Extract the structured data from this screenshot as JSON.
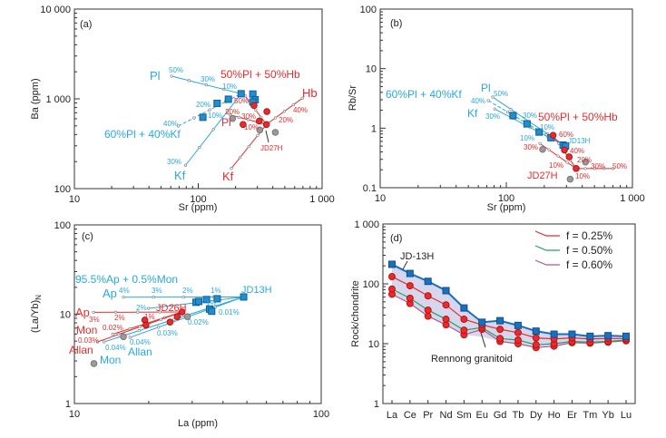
{
  "colors": {
    "blue": "#2aa7df",
    "red": "#e52d2f",
    "gray": "#9a9a9a",
    "square_fill": "#1f8ed3",
    "d_blue": "#1a6fbf",
    "band": "#cfd0ea",
    "green": "#22a45a",
    "purple": "#b0559a"
  },
  "chart_data": [
    {
      "panel": "a",
      "type": "scatter",
      "xscale": "log",
      "yscale": "log",
      "xlabel": "Sr (ppm)",
      "ylabel": "Ba (ppm)",
      "xlim": [
        10,
        1000
      ],
      "ylim": [
        100,
        10000
      ],
      "xticks": [
        {
          "v": 10,
          "label": "10"
        },
        {
          "v": 100,
          "label": "100"
        },
        {
          "v": 1000,
          "label": "1 000"
        }
      ],
      "yticks": [
        {
          "v": 100,
          "label": "100"
        },
        {
          "v": 1000,
          "label": "1 000"
        },
        {
          "v": 10000,
          "label": "10 000"
        }
      ],
      "series": [
        {
          "kind": "line",
          "color": "blue",
          "points": [
            [
              61,
              1790
            ],
            [
              222,
              1140
            ]
          ]
        },
        {
          "kind": "line",
          "color": "blue",
          "points": [
            [
              79,
              182
            ],
            [
              222,
              1140
            ]
          ]
        },
        {
          "kind": "line",
          "color": "blue",
          "dashed": true,
          "points": [
            [
              69,
              498
            ],
            [
              222,
              1140
            ]
          ]
        },
        {
          "kind": "line",
          "color": "red",
          "points": [
            [
              693,
              1016
            ],
            [
              355,
              518
            ]
          ]
        },
        {
          "kind": "line",
          "color": "red",
          "points": [
            [
              185,
              168
            ],
            [
              355,
              518
            ]
          ]
        },
        {
          "kind": "line",
          "color": "red",
          "points": [
            [
              180,
              663
            ],
            [
              355,
              518
            ]
          ]
        },
        {
          "kind": "line",
          "color": "red",
          "points": [
            [
              239,
              1080
            ],
            [
              355,
              518
            ]
          ]
        },
        {
          "kind": "points",
          "marker": "circle",
          "color": "gray",
          "points": [
            [
              189,
              604
            ],
            [
              314,
              450
            ],
            [
              419,
              423
            ]
          ]
        },
        {
          "kind": "points",
          "marker": "square",
          "color": "square_fill",
          "points": [
            [
              222,
              1140
            ],
            [
              276,
              1130
            ],
            [
              288,
              977
            ],
            [
              276,
              923
            ],
            [
              175,
              990
            ],
            [
              142,
              891
            ],
            [
              109,
              623
            ]
          ]
        },
        {
          "kind": "points",
          "marker": "circle",
          "color": "red",
          "points": [
            [
              282,
              843
            ],
            [
              358,
              722
            ],
            [
              311,
              567
            ],
            [
              355,
              518
            ],
            [
              230,
              518
            ]
          ]
        }
      ],
      "annotations": [
        {
          "text": "(a)",
          "color": "#222"
        },
        {
          "text": "Pl",
          "color": "blue"
        },
        {
          "text": "50%",
          "color": "blue"
        },
        {
          "text": "30%",
          "color": "blue"
        },
        {
          "text": "10%",
          "color": "blue"
        },
        {
          "text": "50%Pl + 50%Hb",
          "color": "red"
        },
        {
          "text": "Hb",
          "color": "red"
        },
        {
          "text": "40%",
          "color": "red"
        },
        {
          "text": "20%",
          "color": "red"
        },
        {
          "text": "50%",
          "color": "red"
        },
        {
          "text": "20%",
          "color": "red"
        },
        {
          "text": "30%",
          "color": "red"
        },
        {
          "text": "10%",
          "color": "red"
        },
        {
          "text": "Pl",
          "color": "red"
        },
        {
          "text": "20%",
          "color": "blue"
        },
        {
          "text": "10%",
          "color": "blue"
        },
        {
          "text": "40%",
          "color": "blue"
        },
        {
          "text": "60%Pl + 40%Kf",
          "color": "blue"
        },
        {
          "text": "JD27H",
          "color": "red"
        },
        {
          "text": "30%",
          "color": "blue"
        },
        {
          "text": "Kf",
          "color": "blue"
        },
        {
          "text": "Kf",
          "color": "red"
        }
      ]
    },
    {
      "panel": "b",
      "type": "scatter",
      "xscale": "log",
      "yscale": "log",
      "xlabel": "Sr (ppm)",
      "ylabel": "Rb/Sr",
      "xlim": [
        10,
        1000
      ],
      "ylim": [
        0.1,
        100
      ],
      "xticks": [
        {
          "v": 10,
          "label": "10"
        },
        {
          "v": 100,
          "label": "100"
        },
        {
          "v": 1000,
          "label": "1 000"
        }
      ],
      "yticks": [
        {
          "v": 0.1,
          "label": "0.1"
        },
        {
          "v": 1,
          "label": "1"
        },
        {
          "v": 10,
          "label": "10"
        },
        {
          "v": 100,
          "label": "100"
        }
      ],
      "series": [
        {
          "kind": "line",
          "color": "blue",
          "points": [
            [
              78,
              3.33
            ],
            [
              295,
              0.5
            ]
          ]
        },
        {
          "kind": "line",
          "color": "blue",
          "dashed": true,
          "points": [
            [
              72,
              2.9
            ],
            [
              295,
              0.5
            ]
          ]
        },
        {
          "kind": "line",
          "color": "blue",
          "points": [
            [
              81,
              2.1
            ],
            [
              295,
              0.5
            ]
          ]
        },
        {
          "kind": "line",
          "color": "red",
          "points": [
            [
              703,
              0.21
            ],
            [
              358,
              0.21
            ]
          ]
        },
        {
          "kind": "line",
          "color": "red",
          "points": [
            [
              185,
              0.55
            ],
            [
              358,
              0.21
            ]
          ]
        },
        {
          "kind": "line",
          "color": "red",
          "points": [
            [
              235,
              0.76
            ],
            [
              358,
              0.21
            ]
          ]
        },
        {
          "kind": "points",
          "marker": "circle",
          "color": "gray",
          "points": [
            [
              194,
              0.44
            ],
            [
              425,
              0.27
            ],
            [
              321,
              0.139
            ]
          ]
        },
        {
          "kind": "points",
          "marker": "square",
          "color": "square_fill",
          "points": [
            [
              113,
              1.63
            ],
            [
              146,
              1.18
            ],
            [
              182,
              0.86
            ],
            [
              226,
              0.69
            ],
            [
              282,
              0.52
            ],
            [
              295,
              0.5
            ]
          ]
        },
        {
          "kind": "points",
          "marker": "circle",
          "color": "red",
          "points": [
            [
              235,
              0.76
            ],
            [
              289,
              0.43
            ],
            [
              315,
              0.33
            ],
            [
              358,
              0.21
            ]
          ]
        }
      ],
      "annotations": [
        {
          "text": "(b)",
          "color": "#222"
        },
        {
          "text": "60%Pl + 40%Kf",
          "color": "blue"
        },
        {
          "text": "Pl",
          "color": "blue"
        },
        {
          "text": "50%",
          "color": "blue"
        },
        {
          "text": "40%",
          "color": "blue"
        },
        {
          "text": "Kf",
          "color": "blue"
        },
        {
          "text": "30%",
          "color": "blue"
        },
        {
          "text": "30%",
          "color": "blue"
        },
        {
          "text": "50%Pl + 50%Hb",
          "color": "red"
        },
        {
          "text": "10%",
          "color": "blue"
        },
        {
          "text": "10%",
          "color": "blue"
        },
        {
          "text": "60%",
          "color": "red"
        },
        {
          "text": "JD13H",
          "color": "blue"
        },
        {
          "text": "40%",
          "color": "red"
        },
        {
          "text": "30%",
          "color": "red"
        },
        {
          "text": "20%",
          "color": "red"
        },
        {
          "text": "10%",
          "color": "red"
        },
        {
          "text": "30%",
          "color": "red"
        },
        {
          "text": "50%",
          "color": "red"
        },
        {
          "text": "JD27H",
          "color": "red"
        },
        {
          "text": "10%",
          "color": "red"
        }
      ]
    },
    {
      "panel": "c",
      "type": "scatter",
      "xscale": "log",
      "yscale": "log",
      "xlabel": "La (ppm)",
      "ylabel": "(La/Yb)",
      "ylabel_sub": "N",
      "xlim": [
        10,
        100
      ],
      "ylim": [
        1,
        100
      ],
      "xticks": [
        {
          "v": 10,
          "label": "10"
        },
        {
          "v": 100,
          "label": "100"
        }
      ],
      "yticks": [
        {
          "v": 1,
          "label": "1"
        },
        {
          "v": 10,
          "label": "10"
        },
        {
          "v": 100,
          "label": "100"
        }
      ],
      "series": [
        {
          "kind": "line",
          "color": "blue",
          "points": [
            [
              15.8,
              15.5
            ],
            [
              48.5,
              15.6
            ]
          ]
        },
        {
          "kind": "line",
          "color": "blue",
          "points": [
            [
              19.95,
              11.6
            ],
            [
              48.5,
              15.6
            ]
          ]
        },
        {
          "kind": "line",
          "color": "blue",
          "points": [
            [
              13.2,
              4.9
            ],
            [
              48.5,
              15.6
            ]
          ]
        },
        {
          "kind": "line",
          "color": "blue",
          "points": [
            [
              16.8,
              5.5
            ],
            [
              48.5,
              15.6
            ]
          ]
        },
        {
          "kind": "line",
          "color": "red",
          "points": [
            [
              11.95,
              10.5
            ],
            [
              27.3,
              10.6
            ]
          ]
        },
        {
          "kind": "line",
          "color": "red",
          "points": [
            [
              14.3,
              5.97
            ],
            [
              27.3,
              10.6
            ]
          ]
        },
        {
          "kind": "line",
          "color": "red",
          "points": [
            [
              12.4,
              4.9
            ],
            [
              27.3,
              10.6
            ]
          ]
        },
        {
          "kind": "points",
          "marker": "circle",
          "color": "gray",
          "points": [
            [
              28.7,
              9.4
            ],
            [
              15.8,
              5.6
            ],
            [
              12.0,
              2.8
            ]
          ]
        },
        {
          "kind": "points",
          "marker": "square",
          "color": "square_fill",
          "points": [
            [
              48.5,
              15.6
            ],
            [
              31.1,
              13.6
            ],
            [
              31.9,
              13.9
            ],
            [
              34.3,
              14.6
            ],
            [
              37.9,
              14.9
            ],
            [
              35.3,
              11.4
            ],
            [
              36.0,
              10.8
            ]
          ]
        },
        {
          "kind": "points",
          "marker": "circle",
          "color": "red",
          "points": [
            [
              27.3,
              10.6
            ],
            [
              19.3,
              8.6
            ],
            [
              19.5,
              7.55
            ],
            [
              24.4,
              8.16
            ],
            [
              26.1,
              9.4
            ]
          ]
        }
      ],
      "annotations": [
        {
          "text": "(c)",
          "color": "#222"
        },
        {
          "text": "95.5%Ap + 0.5%Mon",
          "color": "blue"
        },
        {
          "text": "Ap",
          "color": "blue"
        },
        {
          "text": "4%",
          "color": "blue"
        },
        {
          "text": "3%",
          "color": "blue"
        },
        {
          "text": "2%",
          "color": "blue"
        },
        {
          "text": "1%",
          "color": "blue"
        },
        {
          "text": "JD13H",
          "color": "blue"
        },
        {
          "text": "Ap",
          "color": "red"
        },
        {
          "text": "2%",
          "color": "blue"
        },
        {
          "text": "JD26H",
          "color": "red"
        },
        {
          "text": "3%",
          "color": "red"
        },
        {
          "text": "2%",
          "color": "red"
        },
        {
          "text": "1%",
          "color": "red"
        },
        {
          "text": "1%",
          "color": "blue"
        },
        {
          "text": "0.01%",
          "color": "blue"
        },
        {
          "text": "0.02%",
          "color": "blue"
        },
        {
          "text": "0.03%",
          "color": "blue"
        },
        {
          "text": "0.02%",
          "color": "red"
        },
        {
          "text": "Mon",
          "color": "red"
        },
        {
          "text": "0.03%",
          "color": "red"
        },
        {
          "text": "Allan",
          "color": "red"
        },
        {
          "text": "0.04%",
          "color": "blue"
        },
        {
          "text": "0.04%",
          "color": "blue"
        },
        {
          "text": "Allan",
          "color": "blue"
        },
        {
          "text": "Mon",
          "color": "blue"
        }
      ]
    },
    {
      "panel": "d",
      "type": "line",
      "yscale": "log",
      "xlabel": "",
      "ylabel": "Rock/chondrite",
      "ylim": [
        1,
        1000
      ],
      "categories": [
        "La",
        "Ce",
        "Pr",
        "Nd",
        "Sm",
        "Eu",
        "Gd",
        "Tb",
        "Dy",
        "Ho",
        "Er",
        "Tm",
        "Yb",
        "Lu"
      ],
      "yticks": [
        {
          "v": 1,
          "label": "1"
        },
        {
          "v": 10,
          "label": "10"
        },
        {
          "v": 100,
          "label": "100"
        },
        {
          "v": 1000,
          "label": "1 000"
        }
      ],
      "band": {
        "upper": [
          212,
          149,
          110,
          77,
          39.5,
          22.8,
          24.2,
          20.2,
          16.2,
          14.4,
          14.4,
          13.3,
          13.6,
          13.3
        ],
        "lower": [
          67,
          47,
          28.8,
          20.7,
          14.1,
          13,
          10.9,
          10.0,
          8.6,
          9.1,
          10.4,
          10.2,
          10.6,
          11.2
        ]
      },
      "series": [
        {
          "color": "d_blue",
          "marker": "square",
          "values": [
            212,
            149,
            110,
            77,
            39.5,
            22.8,
            24.2,
            20.2,
            16.2,
            14.4,
            14.4,
            13.3,
            13.6,
            13.3
          ]
        },
        {
          "name": "f = 0.25%",
          "color": "red",
          "marker": "circle",
          "values": [
            132,
            93,
            63,
            44.5,
            25.6,
            20.7,
            17.4,
            15.3,
            12.5,
            12.0,
            12.5,
            12.0,
            12.2,
            12.2
          ]
        },
        {
          "name": "f = 0.50%",
          "color": "green",
          "marker": "circle",
          "values": [
            81.9,
            57.5,
            36.4,
            25.6,
            16.8,
            18.6,
            12.2,
            11.5,
            9.6,
            10.0,
            10.9,
            10.6,
            10.9,
            11.5
          ]
        },
        {
          "name": "f = 0.60%",
          "color": "purple",
          "marker": "circle",
          "values": [
            67,
            47,
            28.8,
            20.7,
            14.1,
            17.4,
            10.9,
            10.0,
            8.6,
            9.1,
            10.4,
            10.2,
            10.6,
            11.2
          ]
        }
      ],
      "legend": "top-right",
      "annotations": [
        {
          "text": "(d)",
          "color": "#222"
        },
        {
          "text": "JD-13H",
          "color": "#222"
        },
        {
          "text": "Rennong granitoid",
          "color": "#222"
        }
      ]
    }
  ]
}
